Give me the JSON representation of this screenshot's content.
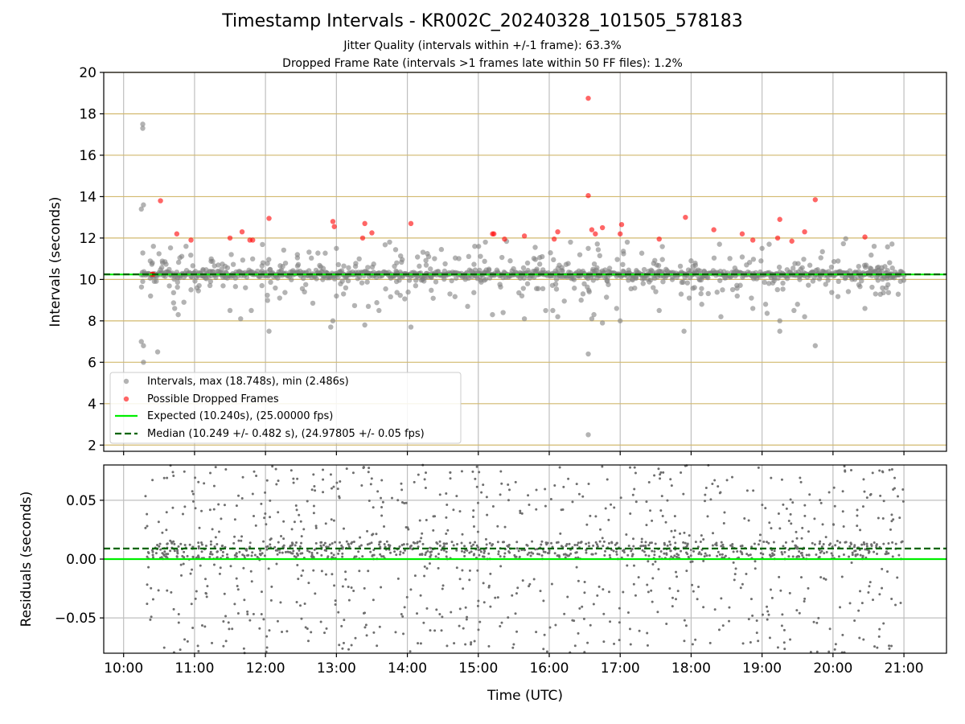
{
  "figure": {
    "title": "Timestamp Intervals - KR002C_20240328_101505_578183",
    "subtitle_1": "Jitter Quality (intervals within +/-1 frame): 63.3%",
    "subtitle_2": "Dropped Frame Rate (intervals >1 frames late within 50 FF files): 1.2%"
  },
  "colors": {
    "intervals": "#808080",
    "dropped": "#ff0000",
    "expected": "#00ee00",
    "median": "#006400",
    "hgrid_top": "#d2b96e",
    "grid": "#bfbfbf"
  },
  "chart_data": [
    {
      "type": "scatter",
      "ylabel": "Intervals (seconds)",
      "xlim_hours": [
        9.72,
        21.6
      ],
      "ylim": [
        1.7,
        20.0
      ],
      "yticks": [
        2,
        4,
        6,
        8,
        10,
        12,
        14,
        16,
        18,
        20
      ],
      "grid": true,
      "legend_position": "lower-left",
      "legend": [
        "Intervals, max (18.748s), min (2.486s)",
        "Possible Dropped Frames",
        "Expected (10.240s), (25.00000 fps)",
        "Median (10.249 +/- 0.482 s), (24.97805 +/- 0.05 fps)"
      ],
      "expected_interval": 10.24,
      "median_interval": 10.249,
      "series": [
        {
          "name": "Intervals, max (18.748s), min (2.486s)",
          "x_range_hours": [
            10.25,
            21.0
          ],
          "typical": 10.25,
          "note_points": [
            [
              10.27,
              17.5
            ],
            [
              10.27,
              17.3
            ],
            [
              10.25,
              13.4
            ],
            [
              10.28,
              13.6
            ],
            [
              10.25,
              7.0
            ],
            [
              10.28,
              6.8
            ],
            [
              10.28,
              6.0
            ],
            [
              10.48,
              6.5
            ],
            [
              10.38,
              9.2
            ],
            [
              10.42,
              11.6
            ],
            [
              10.55,
              10.8
            ],
            [
              10.72,
              8.6
            ],
            [
              10.77,
              8.3
            ],
            [
              10.85,
              8.9
            ],
            [
              10.88,
              11.6
            ],
            [
              10.95,
              9.5
            ],
            [
              11.5,
              8.5
            ],
            [
              11.65,
              8.1
            ],
            [
              11.8,
              8.5
            ],
            [
              11.95,
              9.7
            ],
            [
              12.05,
              7.5
            ],
            [
              12.2,
              9.1
            ],
            [
              12.45,
              11.2
            ],
            [
              12.55,
              9.4
            ],
            [
              12.92,
              7.7
            ],
            [
              12.95,
              8.0
            ],
            [
              13.0,
              9.2
            ],
            [
              13.0,
              11.5
            ],
            [
              13.1,
              9.3
            ],
            [
              13.4,
              7.8
            ],
            [
              13.45,
              8.7
            ],
            [
              13.6,
              8.5
            ],
            [
              13.75,
              11.8
            ],
            [
              13.85,
              10.8
            ],
            [
              14.05,
              7.7
            ],
            [
              14.3,
              11.1
            ],
            [
              14.6,
              9.3
            ],
            [
              14.85,
              8.7
            ],
            [
              14.95,
              11.6
            ],
            [
              15.1,
              11.8
            ],
            [
              15.2,
              8.3
            ],
            [
              15.35,
              8.4
            ],
            [
              15.45,
              10.9
            ],
            [
              15.65,
              8.1
            ],
            [
              15.9,
              11.1
            ],
            [
              16.05,
              8.5
            ],
            [
              16.12,
              8.2
            ],
            [
              16.3,
              11.8
            ],
            [
              16.45,
              9.0
            ],
            [
              16.55,
              11.5
            ],
            [
              16.55,
              6.4
            ],
            [
              16.55,
              2.5
            ],
            [
              16.6,
              8.1
            ],
            [
              16.63,
              8.3
            ],
            [
              16.75,
              7.9
            ],
            [
              16.95,
              8.6
            ],
            [
              17.0,
              8.0
            ],
            [
              17.1,
              11.8
            ],
            [
              17.55,
              8.5
            ],
            [
              17.9,
              7.5
            ],
            [
              18.0,
              10.9
            ],
            [
              18.15,
              8.8
            ],
            [
              18.4,
              11.7
            ],
            [
              18.42,
              8.2
            ],
            [
              18.65,
              9.2
            ],
            [
              18.85,
              9.1
            ],
            [
              18.87,
              8.6
            ],
            [
              19.0,
              11.5
            ],
            [
              19.05,
              8.8
            ],
            [
              19.1,
              11.7
            ],
            [
              19.25,
              7.5
            ],
            [
              19.25,
              8.0
            ],
            [
              19.45,
              8.5
            ],
            [
              19.6,
              8.2
            ],
            [
              19.75,
              6.8
            ],
            [
              20.45,
              8.6
            ],
            [
              20.58,
              11.6
            ],
            [
              20.6,
              9.3
            ]
          ]
        },
        {
          "name": "Possible Dropped Frames",
          "points": [
            [
              10.4,
              10.25
            ],
            [
              10.42,
              10.25
            ],
            [
              10.52,
              13.8
            ],
            [
              10.75,
              12.2
            ],
            [
              10.95,
              11.9
            ],
            [
              11.5,
              12.0
            ],
            [
              11.67,
              12.3
            ],
            [
              11.78,
              11.9
            ],
            [
              11.82,
              11.9
            ],
            [
              12.05,
              12.95
            ],
            [
              12.95,
              12.8
            ],
            [
              12.97,
              12.55
            ],
            [
              13.37,
              12.0
            ],
            [
              13.4,
              12.7
            ],
            [
              13.5,
              12.25
            ],
            [
              14.05,
              12.7
            ],
            [
              15.2,
              12.2
            ],
            [
              15.22,
              12.2
            ],
            [
              15.37,
              11.95
            ],
            [
              15.65,
              12.1
            ],
            [
              16.07,
              11.95
            ],
            [
              16.12,
              12.3
            ],
            [
              16.55,
              18.75
            ],
            [
              16.55,
              14.05
            ],
            [
              16.6,
              12.4
            ],
            [
              16.65,
              12.2
            ],
            [
              16.75,
              12.5
            ],
            [
              17.0,
              12.2
            ],
            [
              17.02,
              12.65
            ],
            [
              17.55,
              11.95
            ],
            [
              17.92,
              13.0
            ],
            [
              18.32,
              12.4
            ],
            [
              18.72,
              12.2
            ],
            [
              18.87,
              11.9
            ],
            [
              19.22,
              12.0
            ],
            [
              19.25,
              12.9
            ],
            [
              19.42,
              11.85
            ],
            [
              19.6,
              12.3
            ],
            [
              19.75,
              13.85
            ],
            [
              20.45,
              12.05
            ]
          ]
        },
        {
          "name": "Expected (10.240s), (25.00000 fps)",
          "value": 10.24
        },
        {
          "name": "Median (10.249 +/- 0.482 s), (24.97805 +/- 0.05 fps)",
          "value": 10.249
        }
      ]
    },
    {
      "type": "scatter",
      "xlabel": "Time (UTC)",
      "ylabel": "Residuals (seconds)",
      "xlim_hours": [
        9.72,
        21.6
      ],
      "ylim": [
        -0.08,
        0.08
      ],
      "yticks": [
        -0.05,
        0.0,
        0.05
      ],
      "ytick_labels": [
        "−0.05",
        "0.00",
        "0.05"
      ],
      "xticks_hours": [
        10,
        11,
        12,
        13,
        14,
        15,
        16,
        17,
        18,
        19,
        20,
        21
      ],
      "xtick_labels": [
        "10:00",
        "11:00",
        "12:00",
        "13:00",
        "14:00",
        "15:00",
        "16:00",
        "17:00",
        "18:00",
        "19:00",
        "20:00",
        "21:00"
      ],
      "grid": true,
      "expected_residual": 0.0,
      "median_residual": 0.009,
      "series": [
        {
          "x_range_hours": [
            10.3,
            21.0
          ],
          "residual_range": [
            -0.08,
            0.08
          ],
          "dense_band": [
            0.0,
            0.015
          ]
        }
      ]
    }
  ]
}
